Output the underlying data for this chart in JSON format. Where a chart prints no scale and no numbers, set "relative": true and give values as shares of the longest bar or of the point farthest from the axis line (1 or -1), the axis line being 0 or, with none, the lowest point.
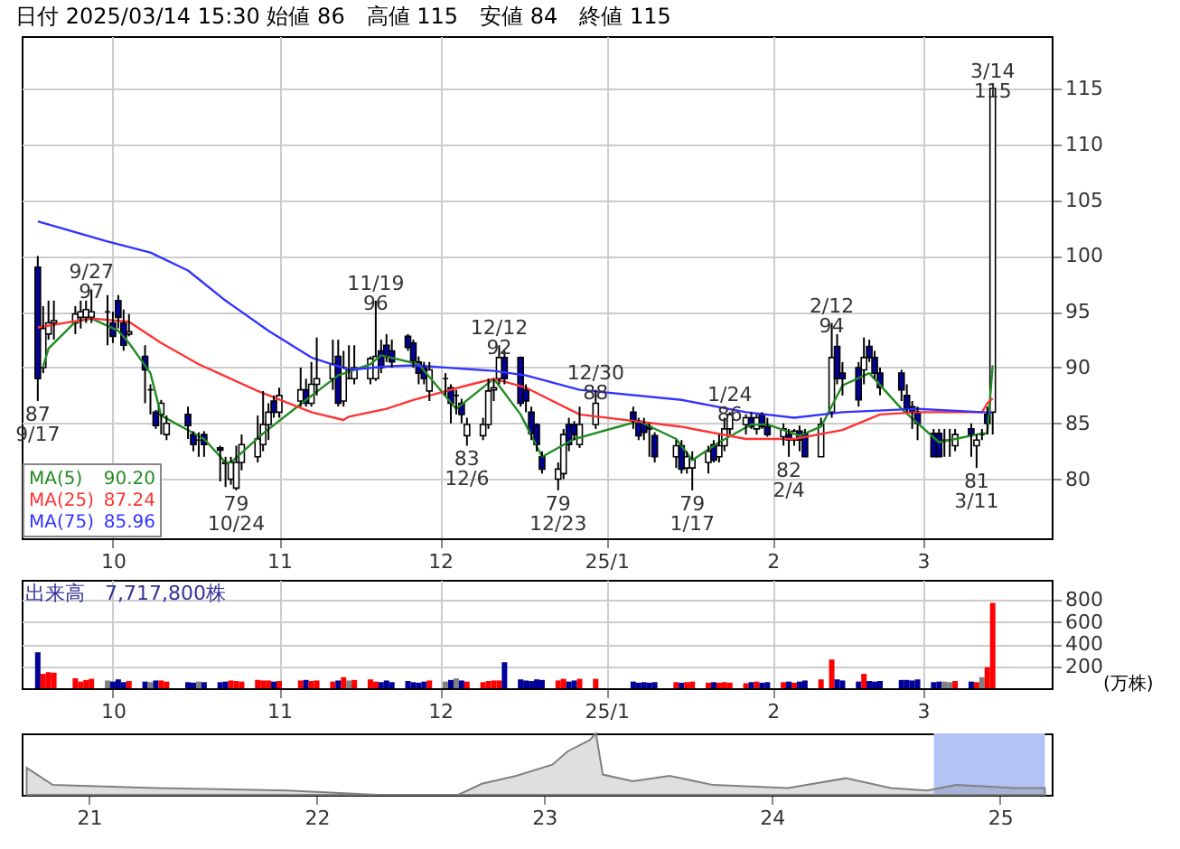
{
  "chart_data": [
    {
      "type": "candlestick",
      "title": "日付 2025/03/14 15:30 始値 86　高値 115　安値 84　終値 115",
      "x": [
        "2024-09-17",
        "2024-09-18",
        "2024-09-19",
        "2024-09-20",
        "2024-09-24",
        "2024-09-25",
        "2024-09-26",
        "2024-09-27",
        "2024-09-30",
        "2024-10-01",
        "2024-10-02",
        "2024-10-03",
        "2024-10-04",
        "2024-10-07",
        "2024-10-08",
        "2024-10-09",
        "2024-10-10",
        "2024-10-11",
        "2024-10-15",
        "2024-10-16",
        "2024-10-17",
        "2024-10-18",
        "2024-10-21",
        "2024-10-22",
        "2024-10-23",
        "2024-10-24",
        "2024-10-25",
        "2024-10-28",
        "2024-10-29",
        "2024-10-30",
        "2024-10-31",
        "2024-11-01",
        "2024-11-05",
        "2024-11-06",
        "2024-11-07",
        "2024-11-08",
        "2024-11-11",
        "2024-11-12",
        "2024-11-13",
        "2024-11-14",
        "2024-11-15",
        "2024-11-18",
        "2024-11-19",
        "2024-11-20",
        "2024-11-21",
        "2024-11-22",
        "2024-11-25",
        "2024-11-26",
        "2024-11-27",
        "2024-11-28",
        "2024-11-29",
        "2024-12-02",
        "2024-12-03",
        "2024-12-04",
        "2024-12-05",
        "2024-12-06",
        "2024-12-09",
        "2024-12-10",
        "2024-12-11",
        "2024-12-12",
        "2024-12-13",
        "2024-12-16",
        "2024-12-17",
        "2024-12-18",
        "2024-12-19",
        "2024-12-20",
        "2024-12-23",
        "2024-12-24",
        "2024-12-25",
        "2024-12-26",
        "2024-12-27",
        "2024-12-30",
        "2025-01-06",
        "2025-01-07",
        "2025-01-08",
        "2025-01-09",
        "2025-01-10",
        "2025-01-14",
        "2025-01-15",
        "2025-01-16",
        "2025-01-17",
        "2025-01-20",
        "2025-01-21",
        "2025-01-22",
        "2025-01-23",
        "2025-01-24",
        "2025-01-27",
        "2025-01-28",
        "2025-01-29",
        "2025-01-30",
        "2025-01-31",
        "2025-02-03",
        "2025-02-04",
        "2025-02-05",
        "2025-02-06",
        "2025-02-07",
        "2025-02-10",
        "2025-02-12",
        "2025-02-13",
        "2025-02-14",
        "2025-02-17",
        "2025-02-18",
        "2025-02-19",
        "2025-02-20",
        "2025-02-21",
        "2025-02-25",
        "2025-02-26",
        "2025-02-27",
        "2025-02-28",
        "2025-03-03",
        "2025-03-04",
        "2025-03-05",
        "2025-03-06",
        "2025-03-07",
        "2025-03-10",
        "2025-03-11",
        "2025-03-12",
        "2025-03-13",
        "2025-03-14"
      ],
      "ohlc": [
        [
          99.0,
          100.0,
          87.0,
          89.0
        ],
        [
          90.0,
          95.5,
          89.5,
          93.5
        ],
        [
          93.0,
          96.0,
          92.5,
          94.0
        ],
        [
          94.0,
          96.0,
          92.5,
          94.2
        ],
        [
          94.0,
          95.5,
          93.0,
          94.8
        ],
        [
          94.5,
          96.0,
          93.5,
          95.0
        ],
        [
          94.5,
          96.0,
          94.0,
          95.2
        ],
        [
          94.5,
          97.0,
          94.0,
          95.0
        ],
        [
          95.0,
          96.5,
          92.0,
          95.0
        ],
        [
          94.0,
          95.0,
          92.2,
          92.8
        ],
        [
          96.0,
          96.5,
          93.5,
          94.5
        ],
        [
          94.0,
          95.2,
          91.5,
          92.0
        ],
        [
          93.0,
          94.8,
          92.8,
          93.2
        ],
        [
          91.0,
          92.0,
          86.8,
          89.8
        ],
        [
          88.0,
          88.5,
          85.8,
          88.0
        ],
        [
          86.0,
          86.2,
          84.5,
          84.8
        ],
        [
          85.8,
          87.1,
          84.0,
          86.8
        ],
        [
          84.0,
          85.7,
          83.5,
          85.0
        ],
        [
          85.8,
          86.5,
          83.6,
          84.8
        ],
        [
          84.0,
          84.3,
          82.5,
          83.1
        ],
        [
          83.5,
          84.2,
          82.0,
          83.5
        ],
        [
          84.0,
          84.3,
          82.0,
          83.1
        ],
        [
          82.8,
          83.0,
          79.8,
          82.6
        ],
        [
          81.5,
          82.0,
          79.3,
          81.4
        ],
        [
          80.0,
          82.0,
          79.5,
          81.5
        ],
        [
          79.2,
          83.0,
          79.0,
          81.5
        ],
        [
          81.5,
          84.0,
          80.8,
          83.1
        ],
        [
          82.0,
          85.7,
          81.5,
          83.6
        ],
        [
          83.1,
          87.9,
          82.5,
          84.9
        ],
        [
          84.9,
          86.8,
          83.5,
          86.0
        ],
        [
          87.0,
          87.5,
          85.5,
          86.0
        ],
        [
          86.0,
          88.2,
          85.5,
          87.5
        ],
        [
          87.0,
          90.0,
          86.5,
          88.0
        ],
        [
          88.0,
          89.0,
          86.5,
          86.8
        ],
        [
          86.8,
          90.5,
          86.5,
          88.5
        ],
        [
          88.5,
          92.7,
          87.5,
          89.0
        ],
        [
          89.0,
          92.5,
          88.0,
          90.3
        ],
        [
          91.0,
          92.5,
          86.5,
          86.8
        ],
        [
          87.0,
          91.5,
          86.5,
          90.0
        ],
        [
          89.0,
          92.0,
          89.0,
          89.0
        ],
        [
          89.0,
          92.0,
          88.5,
          90.0
        ],
        [
          89.0,
          91.0,
          88.5,
          90.8
        ],
        [
          89.0,
          96.0,
          88.8,
          91.0
        ],
        [
          91.5,
          92.5,
          89.5,
          90.0
        ],
        [
          92.0,
          93.0,
          90.5,
          91.0
        ],
        [
          91.5,
          92.5,
          90.0,
          90.5
        ],
        [
          92.8,
          93.0,
          91.5,
          91.8
        ],
        [
          92.2,
          92.5,
          90.0,
          90.6
        ],
        [
          90.5,
          91.0,
          88.5,
          89.5
        ],
        [
          90.1,
          90.5,
          88.5,
          89.0
        ],
        [
          87.9,
          90.5,
          87.0,
          89.8
        ],
        [
          89.0,
          89.5,
          87.5,
          89.0
        ],
        [
          88.2,
          88.5,
          85.0,
          86.8
        ],
        [
          87.5,
          88.0,
          85.8,
          87.5
        ],
        [
          86.8,
          87.2,
          85.0,
          85.8
        ],
        [
          83.9,
          85.5,
          83.0,
          84.9
        ],
        [
          83.9,
          85.5,
          83.5,
          84.9
        ],
        [
          84.9,
          89.0,
          84.5,
          87.9
        ],
        [
          88.0,
          89.0,
          87.0,
          88.2
        ],
        [
          89.0,
          92.0,
          88.5,
          90.9
        ],
        [
          90.9,
          91.5,
          88.5,
          89.0
        ],
        [
          90.9,
          91.0,
          86.5,
          86.8
        ],
        [
          88.0,
          88.5,
          86.0,
          87.0
        ],
        [
          86.0,
          86.5,
          83.5,
          84.1
        ],
        [
          84.9,
          85.0,
          82.5,
          83.1
        ],
        [
          82.0,
          82.5,
          80.5,
          80.9
        ],
        [
          80.0,
          81.5,
          79.0,
          80.9
        ],
        [
          80.5,
          84.5,
          80.0,
          84.0
        ],
        [
          84.9,
          85.5,
          82.5,
          83.1
        ],
        [
          84.9,
          85.2,
          83.5,
          84.0
        ],
        [
          83.1,
          86.5,
          82.8,
          84.9
        ],
        [
          84.9,
          88.0,
          84.5,
          86.8
        ],
        [
          86.0,
          86.5,
          84.5,
          85.2
        ],
        [
          85.2,
          85.5,
          83.5,
          83.9
        ],
        [
          85.0,
          85.5,
          83.5,
          84.2
        ],
        [
          84.7,
          85.0,
          82.0,
          84.5
        ],
        [
          83.9,
          84.2,
          81.5,
          82.0
        ],
        [
          82.0,
          83.5,
          81.0,
          83.0
        ],
        [
          83.0,
          83.5,
          80.5,
          80.9
        ],
        [
          81.0,
          82.5,
          80.5,
          82.0
        ],
        [
          81.0,
          82.5,
          79.0,
          81.8
        ],
        [
          81.5,
          83.0,
          80.5,
          82.5
        ],
        [
          83.1,
          83.5,
          81.5,
          81.7
        ],
        [
          82.0,
          84.0,
          81.5,
          83.0
        ],
        [
          83.0,
          85.5,
          82.5,
          84.5
        ],
        [
          84.5,
          86.0,
          84.0,
          85.8
        ],
        [
          84.9,
          85.8,
          84.0,
          85.5
        ],
        [
          85.5,
          86.0,
          84.5,
          84.7
        ],
        [
          84.5,
          85.8,
          84.0,
          85.5
        ],
        [
          85.8,
          86.0,
          84.5,
          84.7
        ],
        [
          84.7,
          85.5,
          83.8,
          84.0
        ],
        [
          83.8,
          85.0,
          83.0,
          84.5
        ],
        [
          84.0,
          84.5,
          82.0,
          83.5
        ],
        [
          83.5,
          84.5,
          83.0,
          84.3
        ],
        [
          84.3,
          84.8,
          82.5,
          83.5
        ],
        [
          84.1,
          84.5,
          82.0,
          82.0
        ],
        [
          82.0,
          85.5,
          82.0,
          84.9
        ],
        [
          86.0,
          94.0,
          85.5,
          90.9
        ],
        [
          91.9,
          93.0,
          88.5,
          89.0
        ],
        [
          89.5,
          90.5,
          87.5,
          89.0
        ],
        [
          90.0,
          90.5,
          86.5,
          87.1
        ],
        [
          89.8,
          92.7,
          88.5,
          90.9
        ],
        [
          91.9,
          92.5,
          90.5,
          90.9
        ],
        [
          90.9,
          91.5,
          89.0,
          89.5
        ],
        [
          89.5,
          90.0,
          87.5,
          88.2
        ],
        [
          89.5,
          89.8,
          87.0,
          88.0
        ],
        [
          87.5,
          88.5,
          86.0,
          86.3
        ],
        [
          86.5,
          87.0,
          84.5,
          86.0
        ],
        [
          86.0,
          86.5,
          83.5,
          85.0
        ],
        [
          84.1,
          84.5,
          82.0,
          82.0
        ],
        [
          84.1,
          84.5,
          82.0,
          82.0
        ],
        [
          83.5,
          84.5,
          82.0,
          83.5
        ],
        [
          83.5,
          84.5,
          82.0,
          83.5
        ],
        [
          83.0,
          84.5,
          82.5,
          84.0
        ],
        [
          84.5,
          85.0,
          82.0,
          84.0
        ],
        [
          83.0,
          84.0,
          81.0,
          83.5
        ],
        [
          84.0,
          84.5,
          83.5,
          84.0
        ],
        [
          85.8,
          86.5,
          84.0,
          85.0
        ],
        [
          86.0,
          115.0,
          84.0,
          115.0
        ]
      ],
      "colors": [
        "#000099",
        "#ffffff",
        "#ffffff",
        "#ffffff",
        "#ffffff",
        "#ffffff",
        "#ffffff",
        "#ffffff",
        "#000000",
        "#000099",
        "#000099",
        "#000099",
        "#ffffff",
        "#000099",
        "#000000",
        "#000099",
        "#ffffff",
        "#ffffff",
        "#000099",
        "#000099",
        "#000000",
        "#000099",
        "#000099",
        "#000099",
        "#ffffff",
        "#ffffff",
        "#ffffff",
        "#ffffff",
        "#ffffff",
        "#ffffff",
        "#000099",
        "#ffffff",
        "#ffffff",
        "#000099",
        "#ffffff",
        "#ffffff",
        "#ffffff",
        "#000099",
        "#ffffff",
        "#000000",
        "#ffffff",
        "#ffffff",
        "#ffffff",
        "#000099",
        "#000099",
        "#000099",
        "#000099",
        "#000099",
        "#000099",
        "#000099",
        "#ffffff",
        "#000000",
        "#000099",
        "#000000",
        "#000099",
        "#ffffff",
        "#ffffff",
        "#ffffff",
        "#ffffff",
        "#ffffff",
        "#000099",
        "#000099",
        "#000099",
        "#000099",
        "#000099",
        "#000099",
        "#ffffff",
        "#ffffff",
        "#000099",
        "#000099",
        "#ffffff",
        "#ffffff",
        "#000099",
        "#000099",
        "#000099",
        "#000099",
        "#000099",
        "#ffffff",
        "#000099",
        "#ffffff",
        "#ffffff",
        "#ffffff",
        "#000099",
        "#ffffff",
        "#ffffff",
        "#ffffff",
        "#ffffff",
        "#000099",
        "#ffffff",
        "#000099",
        "#000099",
        "#ffffff",
        "#000099",
        "#ffffff",
        "#000099",
        "#000099",
        "#ffffff",
        "#ffffff",
        "#000099",
        "#000099",
        "#000099",
        "#ffffff",
        "#000099",
        "#000099",
        "#000099",
        "#000099",
        "#000099",
        "#000099",
        "#000099",
        "#000099",
        "#000099",
        "#000000",
        "#000000",
        "#ffffff",
        "#000099",
        "#ffffff",
        "#000000",
        "#000099",
        "#ffffff"
      ],
      "series": [
        {
          "name": "MA(5)",
          "type": "line",
          "color": "#228b22",
          "x": [
            "2024-09-18",
            "2024-09-19",
            "2024-09-24",
            "2024-09-27",
            "2024-10-02",
            "2024-10-04",
            "2024-10-08",
            "2024-10-10",
            "2024-10-18",
            "2024-10-22",
            "2024-10-23",
            "2024-10-29",
            "2024-11-06",
            "2024-11-12",
            "2024-11-18",
            "2024-11-20",
            "2024-11-27",
            "2024-12-04",
            "2024-12-11",
            "2024-12-16",
            "2024-12-20",
            "2024-12-26",
            "2025-01-07",
            "2025-01-14",
            "2025-01-17",
            "2025-01-22",
            "2025-01-28",
            "2025-01-31",
            "2025-02-06",
            "2025-02-10",
            "2025-02-14",
            "2025-02-19",
            "2025-02-25",
            "2025-03-04",
            "2025-03-12",
            "2025-03-13",
            "2025-03-14"
          ],
          "values": [
            90.1,
            91.7,
            94.1,
            94.4,
            93.3,
            92.2,
            89.5,
            85.7,
            83.6,
            81.5,
            81.5,
            84.1,
            87.1,
            89.3,
            90.3,
            91.1,
            90.3,
            86.3,
            89.0,
            85.8,
            82.0,
            83.6,
            85.2,
            83.6,
            81.7,
            83.3,
            84.9,
            84.9,
            83.9,
            84.7,
            88.4,
            89.5,
            86.3,
            83.3,
            84.1,
            84.1,
            90.2
          ]
        },
        {
          "name": "MA(25)",
          "type": "line",
          "color": "#ff3333",
          "x": [
            "2024-09-17",
            "2024-09-27",
            "2024-10-04",
            "2024-10-10",
            "2024-10-17",
            "2024-10-28",
            "2024-11-07",
            "2024-11-13",
            "2024-11-14",
            "2024-11-21",
            "2024-11-26",
            "2024-12-06",
            "2024-12-11",
            "2024-12-17",
            "2024-12-27",
            "2025-01-15",
            "2025-01-27",
            "2025-02-05",
            "2025-02-14",
            "2025-02-21",
            "2025-02-28",
            "2025-03-12",
            "2025-03-13",
            "2025-03-14"
          ],
          "values": [
            93.6,
            94.4,
            94.1,
            92.2,
            90.3,
            87.9,
            86.0,
            85.3,
            85.6,
            86.3,
            87.1,
            88.4,
            89.0,
            88.2,
            85.8,
            84.7,
            83.6,
            83.6,
            84.4,
            85.8,
            86.0,
            86.0,
            86.8,
            87.24
          ]
        },
        {
          "name": "MA(75)",
          "type": "line",
          "color": "#3333ff",
          "x": [
            "2024-09-17",
            "2024-09-30",
            "2024-10-08",
            "2024-10-15",
            "2024-10-22",
            "2024-10-30",
            "2024-11-07",
            "2024-11-14",
            "2024-11-21",
            "2024-11-26",
            "2024-12-11",
            "2024-12-17",
            "2024-12-27",
            "2025-01-15",
            "2025-01-27",
            "2025-02-05",
            "2025-02-14",
            "2025-02-28",
            "2025-03-12",
            "2025-03-14"
          ],
          "values": [
            103.1,
            101.3,
            100.3,
            98.7,
            96.0,
            93.3,
            90.9,
            89.8,
            90.1,
            90.2,
            89.7,
            89.3,
            88.0,
            87.1,
            86.0,
            85.5,
            86.0,
            86.3,
            86.0,
            85.96
          ]
        }
      ],
      "annotations": [
        "90.20",
        "87.24",
        "85.96",
        {
          "text": "87\n9/17",
          "x": "2024-09-17",
          "y": 87
        },
        {
          "text": "9/27\n97",
          "x": "2024-09-27",
          "y": 97
        },
        {
          "text": "79\n10/24",
          "x": "2024-10-24",
          "y": 79
        },
        {
          "text": "11/19\n96",
          "x": "2024-11-19",
          "y": 96
        },
        {
          "text": "83\n12/6",
          "x": "2024-12-06",
          "y": 83
        },
        {
          "text": "12/12\n92",
          "x": "2024-12-12",
          "y": 92
        },
        {
          "text": "79\n12/23",
          "x": "2024-12-23",
          "y": 79
        },
        {
          "text": "12/30\n88",
          "x": "2024-12-30",
          "y": 88
        },
        {
          "text": "79\n1/17",
          "x": "2025-01-17",
          "y": 79
        },
        {
          "text": "1/24\n86",
          "x": "2025-01-24",
          "y": 86
        },
        {
          "text": "82\n2/4",
          "x": "2025-02-04",
          "y": 82
        },
        {
          "text": "2/12\n94",
          "x": "2025-02-12",
          "y": 94
        },
        {
          "text": "81\n3/11",
          "x": "2025-03-11",
          "y": 81
        },
        {
          "text": "3/14\n115",
          "x": "2025-03-14",
          "y": 115
        }
      ],
      "xlim": [
        "2024-09-14",
        "2025-03-25"
      ],
      "xticks": [
        {
          "value": "2024-10-01",
          "label": "10"
        },
        {
          "value": "2024-11-01",
          "label": "11"
        },
        {
          "value": "2024-12-01",
          "label": "12"
        },
        {
          "value": "2025-01-01",
          "label": "25/1"
        },
        {
          "value": "2025-02-01",
          "label": "2"
        },
        {
          "value": "2025-03-01",
          "label": "3"
        }
      ],
      "ylim": [
        74.7,
        119.7
      ],
      "yticks": [
        80,
        85,
        90,
        95,
        100,
        105,
        110,
        115
      ],
      "grid": true,
      "legend": "bottom left"
    },
    {
      "type": "bar",
      "ylabel": "(万株)",
      "annotations": [
        "出来高　7,717,800株"
      ],
      "x": [
        "2024-09-17",
        "2024-09-18",
        "2024-09-19",
        "2024-09-20",
        "2024-09-24",
        "2024-09-25",
        "2024-09-26",
        "2024-09-27",
        "2024-09-30",
        "2024-10-01",
        "2024-10-02",
        "2024-10-03",
        "2024-10-04",
        "2024-10-07",
        "2024-10-08",
        "2024-10-09",
        "2024-10-10",
        "2024-10-11",
        "2024-10-15",
        "2024-10-16",
        "2024-10-17",
        "2024-10-18",
        "2024-10-21",
        "2024-10-22",
        "2024-10-23",
        "2024-10-24",
        "2024-10-25",
        "2024-10-28",
        "2024-10-29",
        "2024-10-30",
        "2024-10-31",
        "2024-11-01",
        "2024-11-05",
        "2024-11-06",
        "2024-11-07",
        "2024-11-08",
        "2024-11-11",
        "2024-11-12",
        "2024-11-13",
        "2024-11-14",
        "2024-11-15",
        "2024-11-18",
        "2024-11-19",
        "2024-11-20",
        "2024-11-21",
        "2024-11-22",
        "2024-11-25",
        "2024-11-26",
        "2024-11-27",
        "2024-11-28",
        "2024-11-29",
        "2024-12-02",
        "2024-12-03",
        "2024-12-04",
        "2024-12-05",
        "2024-12-06",
        "2024-12-09",
        "2024-12-10",
        "2024-12-11",
        "2024-12-12",
        "2024-12-13",
        "2024-12-16",
        "2024-12-17",
        "2024-12-18",
        "2024-12-19",
        "2024-12-20",
        "2024-12-23",
        "2024-12-24",
        "2024-12-25",
        "2024-12-26",
        "2024-12-27",
        "2024-12-30",
        "2025-01-06",
        "2025-01-07",
        "2025-01-08",
        "2025-01-09",
        "2025-01-10",
        "2025-01-14",
        "2025-01-15",
        "2025-01-16",
        "2025-01-17",
        "2025-01-20",
        "2025-01-21",
        "2025-01-22",
        "2025-01-23",
        "2025-01-24",
        "2025-01-27",
        "2025-01-28",
        "2025-01-29",
        "2025-01-30",
        "2025-01-31",
        "2025-02-03",
        "2025-02-04",
        "2025-02-05",
        "2025-02-06",
        "2025-02-07",
        "2025-02-10",
        "2025-02-12",
        "2025-02-13",
        "2025-02-14",
        "2025-02-17",
        "2025-02-18",
        "2025-02-19",
        "2025-02-20",
        "2025-02-21",
        "2025-02-25",
        "2025-02-26",
        "2025-02-27",
        "2025-02-28",
        "2025-03-03",
        "2025-03-04",
        "2025-03-05",
        "2025-03-06",
        "2025-03-07",
        "2025-03-10",
        "2025-03-11",
        "2025-03-12",
        "2025-03-13",
        "2025-03-14"
      ],
      "values": [
        325,
        130,
        145,
        140,
        90,
        60,
        75,
        85,
        70,
        60,
        80,
        55,
        65,
        60,
        55,
        70,
        70,
        60,
        55,
        50,
        60,
        55,
        55,
        60,
        70,
        65,
        60,
        75,
        70,
        70,
        60,
        65,
        70,
        75,
        65,
        70,
        60,
        70,
        100,
        70,
        75,
        80,
        60,
        55,
        70,
        55,
        65,
        55,
        50,
        60,
        70,
        60,
        75,
        90,
        70,
        60,
        55,
        65,
        70,
        70,
        235,
        80,
        70,
        65,
        80,
        75,
        70,
        85,
        60,
        70,
        85,
        85,
        60,
        50,
        55,
        50,
        55,
        55,
        50,
        55,
        60,
        50,
        55,
        50,
        55,
        50,
        45,
        55,
        60,
        50,
        55,
        55,
        60,
        50,
        60,
        70,
        80,
        260,
        80,
        70,
        60,
        130,
        65,
        60,
        65,
        75,
        75,
        70,
        80,
        55,
        60,
        60,
        55,
        65,
        60,
        55,
        100,
        190,
        771.78
      ],
      "colors": [
        "#000099",
        "#ff0000",
        "#ff0000",
        "#ff0000",
        "#ff0000",
        "#ff0000",
        "#ff0000",
        "#ff0000",
        "#808080",
        "#000099",
        "#000099",
        "#000099",
        "#ff0000",
        "#000099",
        "#808080",
        "#000099",
        "#ff0000",
        "#ff0000",
        "#000099",
        "#000099",
        "#808080",
        "#000099",
        "#000099",
        "#000099",
        "#ff0000",
        "#ff0000",
        "#ff0000",
        "#ff0000",
        "#ff0000",
        "#ff0000",
        "#000099",
        "#ff0000",
        "#ff0000",
        "#000099",
        "#ff0000",
        "#ff0000",
        "#ff0000",
        "#000099",
        "#ff0000",
        "#808080",
        "#ff0000",
        "#ff0000",
        "#ff0000",
        "#000099",
        "#000099",
        "#000099",
        "#000099",
        "#000099",
        "#000099",
        "#000099",
        "#ff0000",
        "#808080",
        "#000099",
        "#808080",
        "#000099",
        "#ff0000",
        "#ff0000",
        "#ff0000",
        "#ff0000",
        "#ff0000",
        "#000099",
        "#000099",
        "#000099",
        "#000099",
        "#000099",
        "#000099",
        "#ff0000",
        "#ff0000",
        "#000099",
        "#000099",
        "#ff0000",
        "#ff0000",
        "#000099",
        "#000099",
        "#000099",
        "#000099",
        "#000099",
        "#ff0000",
        "#000099",
        "#ff0000",
        "#ff0000",
        "#ff0000",
        "#000099",
        "#ff0000",
        "#ff0000",
        "#ff0000",
        "#ff0000",
        "#000099",
        "#ff0000",
        "#000099",
        "#000099",
        "#ff0000",
        "#000099",
        "#ff0000",
        "#000099",
        "#000099",
        "#ff0000",
        "#ff0000",
        "#000099",
        "#000099",
        "#000099",
        "#ff0000",
        "#000099",
        "#000099",
        "#000099",
        "#000099",
        "#000099",
        "#000099",
        "#000099",
        "#000099",
        "#000099",
        "#808080",
        "#808080",
        "#ff0000",
        "#000099",
        "#ff0000",
        "#808080",
        "#ff0000",
        "#ff0000"
      ],
      "xlim": [
        "2024-09-14",
        "2025-03-25"
      ],
      "xticks": [
        {
          "value": "2024-10-01",
          "label": "10"
        },
        {
          "value": "2024-11-01",
          "label": "11"
        },
        {
          "value": "2024-12-01",
          "label": "12"
        },
        {
          "value": "2025-01-01",
          "label": "25/1"
        },
        {
          "value": "2025-02-01",
          "label": "2"
        },
        {
          "value": "2025-03-01",
          "label": "3"
        }
      ],
      "ylim": [
        0,
        980
      ],
      "yticks": [
        200,
        400,
        600,
        800
      ],
      "grid": true
    },
    {
      "type": "area",
      "relative": true,
      "series": [
        {
          "color": "#808080",
          "x": [
            "2020-09-23",
            "2020-11-04",
            "2021-04-18",
            "2021-11-16",
            "2022-04-08",
            "2022-08-16",
            "2022-09-23",
            "2022-11-17",
            "2023-01-14",
            "2023-02-08",
            "2023-03-15",
            "2023-03-25",
            "2023-04-05",
            "2023-05-23",
            "2023-07-21",
            "2023-09-29",
            "2024-01-27",
            "2024-04-29",
            "2024-07-10",
            "2024-09-07",
            "2024-10-23",
            "2025-01-25",
            "2025-03-14"
          ],
          "values": [
            0.44,
            0.16,
            0.11,
            0.07,
            0,
            0,
            0.18,
            0.31,
            0.49,
            0.71,
            0.89,
            1.0,
            0.33,
            0.22,
            0.31,
            0.16,
            0.11,
            0.27,
            0.11,
            0.07,
            0.16,
            0.11,
            0.11
          ]
        }
      ],
      "bands": [
        {
          "axis": "x",
          "from": "2024-09-17",
          "to": "2025-03-14",
          "color": "#b4c3f5"
        }
      ],
      "xlim": [
        "2020-09-15",
        "2025-03-25"
      ],
      "xticks": [
        {
          "value": "2021-01-01",
          "label": "21"
        },
        {
          "value": "2022-01-01",
          "label": "22"
        },
        {
          "value": "2023-01-01",
          "label": "23"
        },
        {
          "value": "2024-01-01",
          "label": "24"
        },
        {
          "value": "2025-01-01",
          "label": "25"
        }
      ]
    }
  ]
}
